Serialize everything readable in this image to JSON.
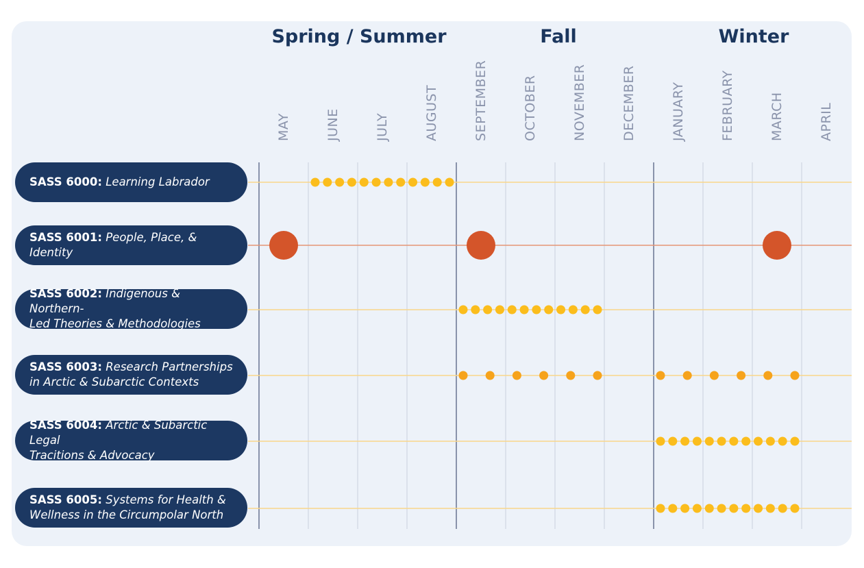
{
  "seasons": [
    "Spring / Summer",
    "Fall",
    "Winter"
  ],
  "months": [
    "MAY",
    "JUNE",
    "JULY",
    "AUGUST",
    "SEPTEMBER",
    "OCTOBER",
    "NOVEMBER",
    "DECEMBER",
    "JANUARY",
    "FEBRUARY",
    "MARCH",
    "APRIL"
  ],
  "courses": [
    {
      "code": "SASS 6000",
      "colon": ":",
      "title": "Learning Labrador",
      "title2": ""
    },
    {
      "code": "SASS 6001",
      "colon": ":",
      "title": "People, Place, & Identity",
      "title2": ""
    },
    {
      "code": "SASS 6002",
      "colon": ":",
      "title": "Indigenous & Northern-",
      "title2": "Led Theories & Methodologies"
    },
    {
      "code": "SASS 6003",
      "colon": ":",
      "title": "Research Partnerships",
      "title2": "in Arctic & Subarctic Contexts"
    },
    {
      "code": "SASS 6004",
      "colon": ":",
      "title": "Arctic & Subarctic Legal",
      "title2": "Tracitions & Advocacy"
    },
    {
      "code": "SASS 6005",
      "colon": ":",
      "title": "Systems for Health &",
      "title2": "Wellness in the Circumpolar North"
    }
  ],
  "colors": {
    "pill": "#1c3862",
    "season_title": "#1b365d",
    "month_label": "#8a93ab",
    "yellow_dot": "#fbbd1d",
    "orange_dot": "#f6a31c",
    "red_circle": "#d4552a",
    "yellow_line": "#f9d68a",
    "red_line": "#e59576",
    "major_divider": "#8993ab",
    "minor_divider": "#c9d0dd"
  },
  "schedule": [
    {
      "course": "SASS 6000",
      "style": "dense",
      "from_month": 1.0,
      "to_month": 4.0
    },
    {
      "course": "SASS 6001",
      "style": "start",
      "months": [
        0,
        4,
        10
      ]
    },
    {
      "course": "SASS 6002",
      "style": "dense",
      "from_month": 4.0,
      "to_month": 7.0
    },
    {
      "course": "SASS 6003",
      "style": "sparse",
      "from_month": 4.0,
      "to_month": 7.0
    },
    {
      "course": "SASS 6003",
      "style": "sparse",
      "from_month": 8.0,
      "to_month": 11.0
    },
    {
      "course": "SASS 6004",
      "style": "dense",
      "from_month": 8.0,
      "to_month": 11.0
    },
    {
      "course": "SASS 6005",
      "style": "dense",
      "from_month": 8.0,
      "to_month": 11.0
    }
  ]
}
